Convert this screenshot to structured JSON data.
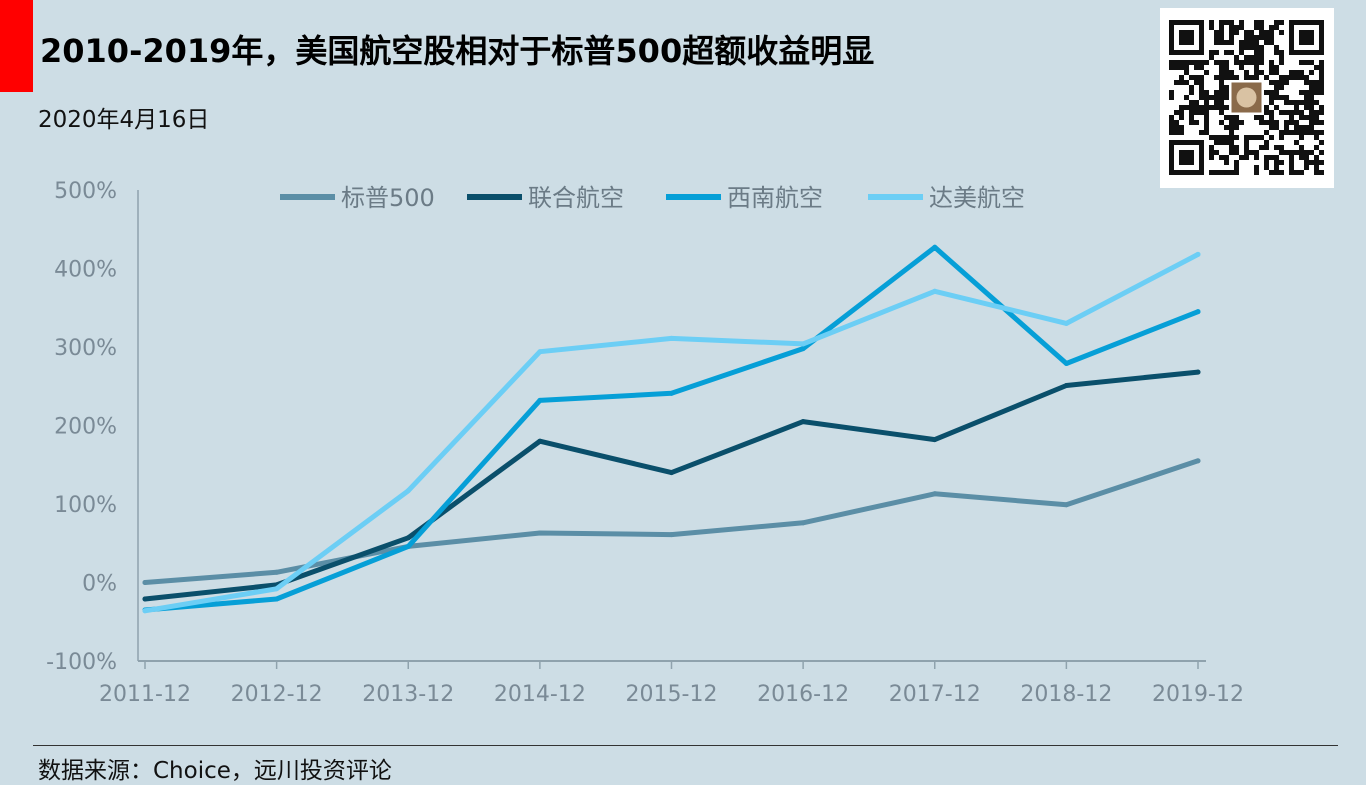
{
  "header": {
    "title": "2010-2019年，美国航空股相对于标普500超额收益明显",
    "date": "2020年4月16日"
  },
  "footer": {
    "source": "数据来源：Choice，远川投资评论"
  },
  "qr_code": {
    "icon": "qr-code-icon"
  },
  "colors": {
    "background": "#cddde5",
    "accent": "#ff0000",
    "axis_text": "#7a8a96"
  },
  "chart_data": {
    "type": "line",
    "categories": [
      "2011-12",
      "2012-12",
      "2013-12",
      "2014-12",
      "2015-12",
      "2016-12",
      "2017-12",
      "2018-12",
      "2019-12"
    ],
    "y_ticks": [
      "500%",
      "400%",
      "300%",
      "200%",
      "100%",
      "0%",
      "-100%"
    ],
    "ylim": [
      -100,
      500
    ],
    "ytick_values": [
      500,
      400,
      300,
      200,
      100,
      0,
      -100
    ],
    "grid": false,
    "legend_position": "top",
    "series": [
      {
        "name": "标普500",
        "color": "#5b8ea6",
        "values": [
          0,
          13,
          46,
          63,
          61,
          76,
          113,
          99,
          155
        ]
      },
      {
        "name": "联合航空",
        "color": "#0a4f6b",
        "values": [
          -21,
          -3,
          57,
          180,
          140,
          205,
          182,
          251,
          268
        ]
      },
      {
        "name": "西南航空",
        "color": "#069fd7",
        "values": [
          -35,
          -21,
          46,
          232,
          241,
          298,
          427,
          279,
          345
        ]
      },
      {
        "name": "达美航空",
        "color": "#6ccef5",
        "values": [
          -36,
          -8,
          117,
          294,
          311,
          304,
          371,
          330,
          418
        ]
      }
    ]
  }
}
